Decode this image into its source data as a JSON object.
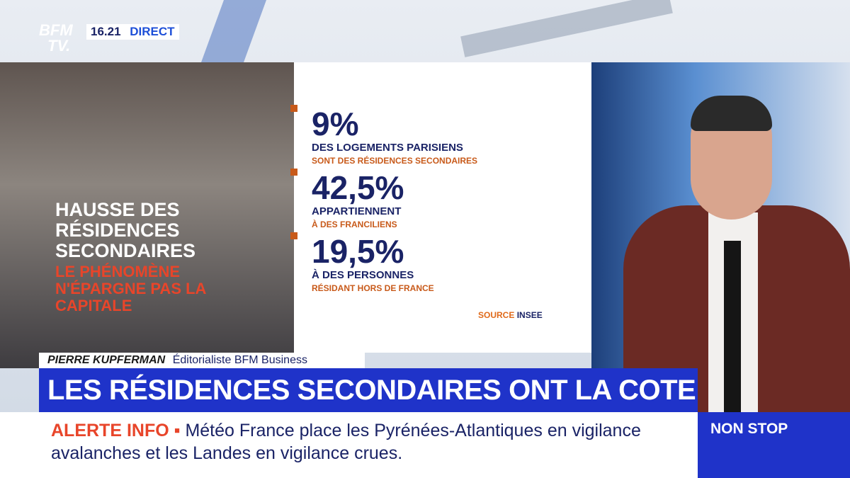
{
  "header": {
    "logo": [
      "BFM",
      "TV."
    ],
    "time": "16.21",
    "status": "DIRECT"
  },
  "photo_overlay": {
    "title": [
      "HAUSSE DES",
      "RÉSIDENCES",
      "SECONDAIRES"
    ],
    "subtitle": [
      "LE PHÉNOMÈNE",
      "N'ÉPARGNE PAS LA",
      "CAPITALE"
    ]
  },
  "stats": [
    {
      "figure": "9%",
      "line1": "DES LOGEMENTS PARISIENS",
      "line2": "SONT DES RÉSIDENCES SECONDAIRES"
    },
    {
      "figure": "42,5%",
      "line1": "APPARTIENNENT",
      "line2": "À DES FRANCILIENS"
    },
    {
      "figure": "19,5%",
      "line1": "À DES PERSONNES",
      "line2": "RÉSIDANT HORS DE FRANCE"
    }
  ],
  "source": {
    "label": "SOURCE",
    "name": "INSEE"
  },
  "speaker": {
    "name": "PIERRE KUPFERMAN",
    "role": "Éditorialiste BFM Business"
  },
  "headline": "LES RÉSIDENCES SECONDAIRES ONT LA COTE",
  "ticker": {
    "label": "ALERTE INFO",
    "text": "Météo France place les Pyrénées-Atlantiques en vigilance avalanches et les Landes en vigilance crues."
  },
  "badge": "NON STOP"
}
